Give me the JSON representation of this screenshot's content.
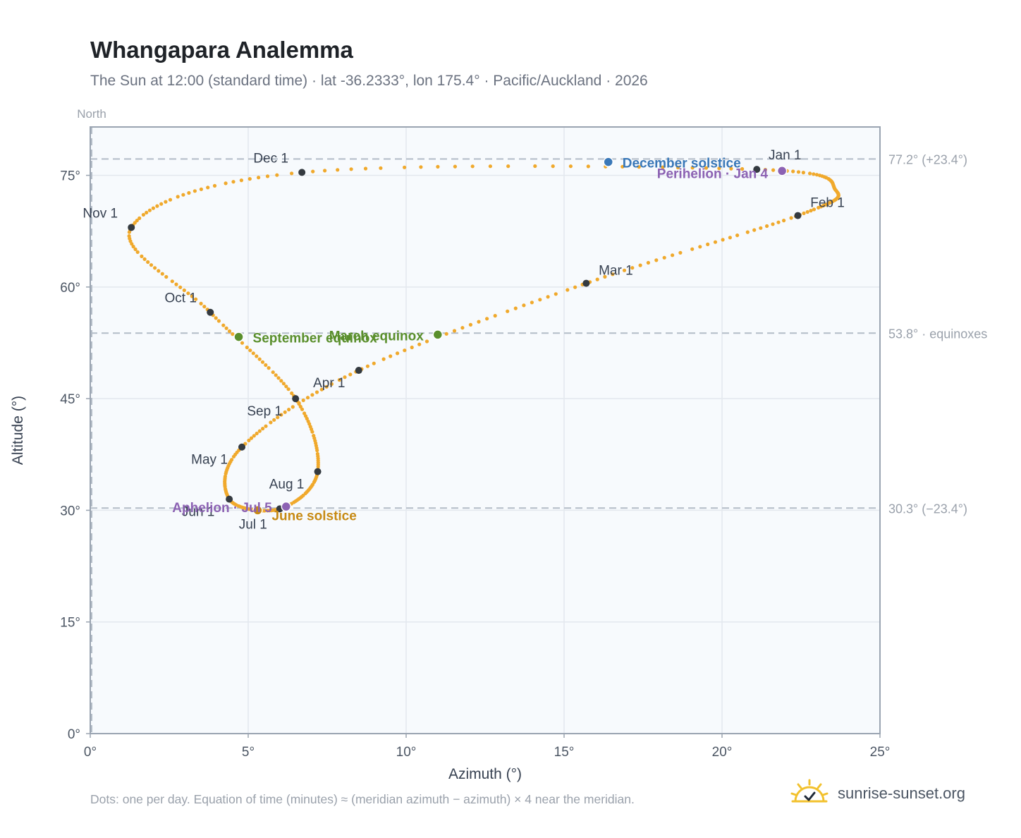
{
  "title": "Whangapara Analemma",
  "subtitle": "The Sun at 12:00 (standard time) · lat -36.2333°, lon 175.4° · Pacific/Auckland · 2026",
  "footnote": "Dots: one per day. Equation of time (minutes) ≈ (meridian azimuth − azimuth) × 4 near the meridian.",
  "brand": "sunrise-sunset.org",
  "colors": {
    "curve": "#f0a92c",
    "month_dot": "#343a40",
    "equinox": "#5a8f2c",
    "december": "#3a78b8",
    "june": "#c78a14",
    "apsis": "#8c62b3",
    "plot_bg": "#f7fafd",
    "grid": "#e3e8ee",
    "axis": "#9aa4b1",
    "ref_line": "#b3bcc7"
  },
  "chart_data": {
    "type": "scatter",
    "title": "Whangapara Analemma",
    "xlabel": "Azimuth (°)",
    "ylabel": "Altitude (°)",
    "xlim": [
      0,
      25
    ],
    "ylim": [
      0,
      81.5
    ],
    "x_ticks": [
      "0°",
      "5°",
      "10°",
      "15°",
      "20°",
      "25°"
    ],
    "y_ticks": [
      "0°",
      "15°",
      "30°",
      "45°",
      "60°",
      "75°"
    ],
    "x_tick_values": [
      0,
      5,
      10,
      15,
      20,
      25
    ],
    "y_tick_values": [
      0,
      15,
      30,
      45,
      60,
      75
    ],
    "meridian_label": "North",
    "grid": true,
    "reference_lines": [
      {
        "y": 77.2,
        "label": "77.2° (+23.4°)"
      },
      {
        "y": 53.8,
        "label": "53.8° · equinoxes"
      },
      {
        "y": 30.3,
        "label": "30.3° (−23.4°)"
      }
    ],
    "path_points": [
      {
        "x": 21.1,
        "y": 75.8
      },
      {
        "x": 23.6,
        "y": 73.0
      },
      {
        "x": 22.4,
        "y": 69.6
      },
      {
        "x": 15.7,
        "y": 60.5
      },
      {
        "x": 8.5,
        "y": 48.8
      },
      {
        "x": 4.8,
        "y": 38.5
      },
      {
        "x": 4.4,
        "y": 31.5
      },
      {
        "x": 6.0,
        "y": 30.2
      },
      {
        "x": 7.2,
        "y": 35.2
      },
      {
        "x": 6.5,
        "y": 45.0
      },
      {
        "x": 3.8,
        "y": 56.6
      },
      {
        "x": 1.3,
        "y": 68.0
      },
      {
        "x": 6.7,
        "y": 75.4
      },
      {
        "x": 21.1,
        "y": 75.8
      }
    ],
    "month_markers": [
      {
        "label": "Jan 1",
        "x": 21.1,
        "y": 75.8
      },
      {
        "label": "Feb 1",
        "x": 22.4,
        "y": 69.6
      },
      {
        "label": "Mar 1",
        "x": 15.7,
        "y": 60.5
      },
      {
        "label": "Apr 1",
        "x": 8.5,
        "y": 48.8
      },
      {
        "label": "May 1",
        "x": 4.8,
        "y": 38.5
      },
      {
        "label": "Jun 1",
        "x": 4.4,
        "y": 31.5
      },
      {
        "label": "Jul 1",
        "x": 6.0,
        "y": 30.2
      },
      {
        "label": "Aug 1",
        "x": 7.2,
        "y": 35.2
      },
      {
        "label": "Sep 1",
        "x": 6.5,
        "y": 45.0
      },
      {
        "label": "Oct 1",
        "x": 3.8,
        "y": 56.6
      },
      {
        "label": "Nov 1",
        "x": 1.3,
        "y": 68.0
      },
      {
        "label": "Dec 1",
        "x": 6.7,
        "y": 75.4
      }
    ],
    "events": [
      {
        "label": "December solstice",
        "x": 16.4,
        "y": 76.8,
        "kind": "december"
      },
      {
        "label": "Perihelion · Jan 4",
        "x": 21.9,
        "y": 75.6,
        "kind": "apsis"
      },
      {
        "label": "March equinox",
        "x": 11.0,
        "y": 53.6,
        "kind": "equinox"
      },
      {
        "label": "September equinox",
        "x": 4.7,
        "y": 53.3,
        "kind": "equinox"
      },
      {
        "label": "June solstice",
        "x": 5.3,
        "y": 30.0,
        "kind": "june"
      },
      {
        "label": "Aphelion · Jul 5",
        "x": 6.2,
        "y": 30.5,
        "kind": "apsis"
      }
    ]
  }
}
